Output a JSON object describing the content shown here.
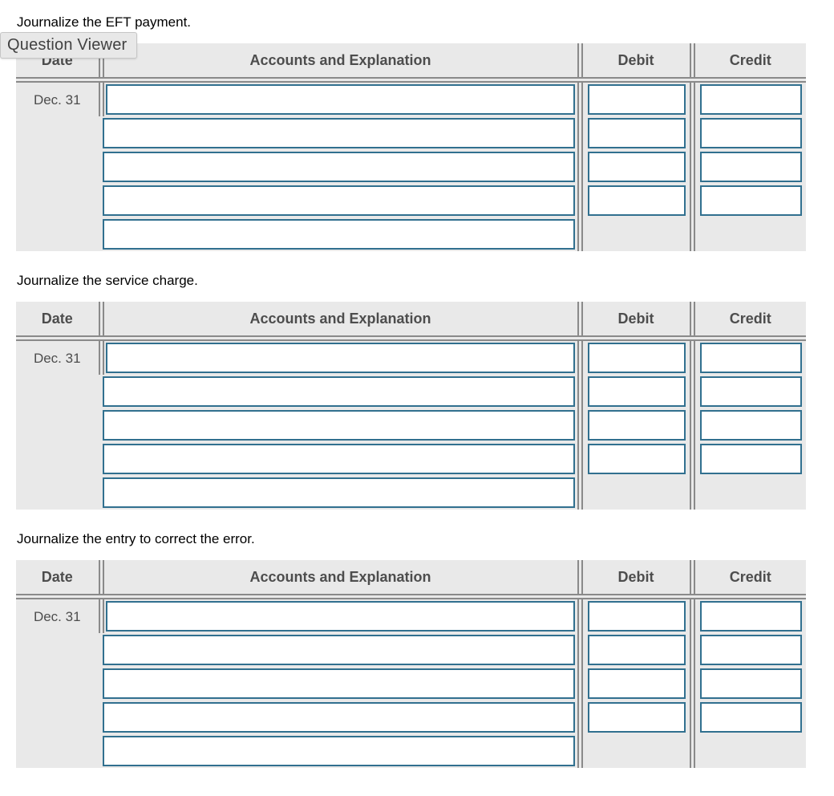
{
  "tooltip": {
    "label": "Question Viewer"
  },
  "sections": [
    {
      "title": "Journalize the EFT payment."
    },
    {
      "title": "Journalize the service charge."
    },
    {
      "title": "Journalize the entry to correct the error."
    }
  ],
  "table": {
    "headers": {
      "date": "Date",
      "accounts": "Accounts and Explanation",
      "debit": "Debit",
      "credit": "Credit"
    },
    "date_value": "Dec. 31",
    "account_input_count": 5,
    "amount_input_count": 4,
    "input_value": ""
  },
  "colors": {
    "table_background": "#e9e9e9",
    "grid_line": "#8a8a8a",
    "header_text": "#4d4d4d",
    "input_border": "#31708f",
    "tooltip_background": "#e8e8e8"
  }
}
